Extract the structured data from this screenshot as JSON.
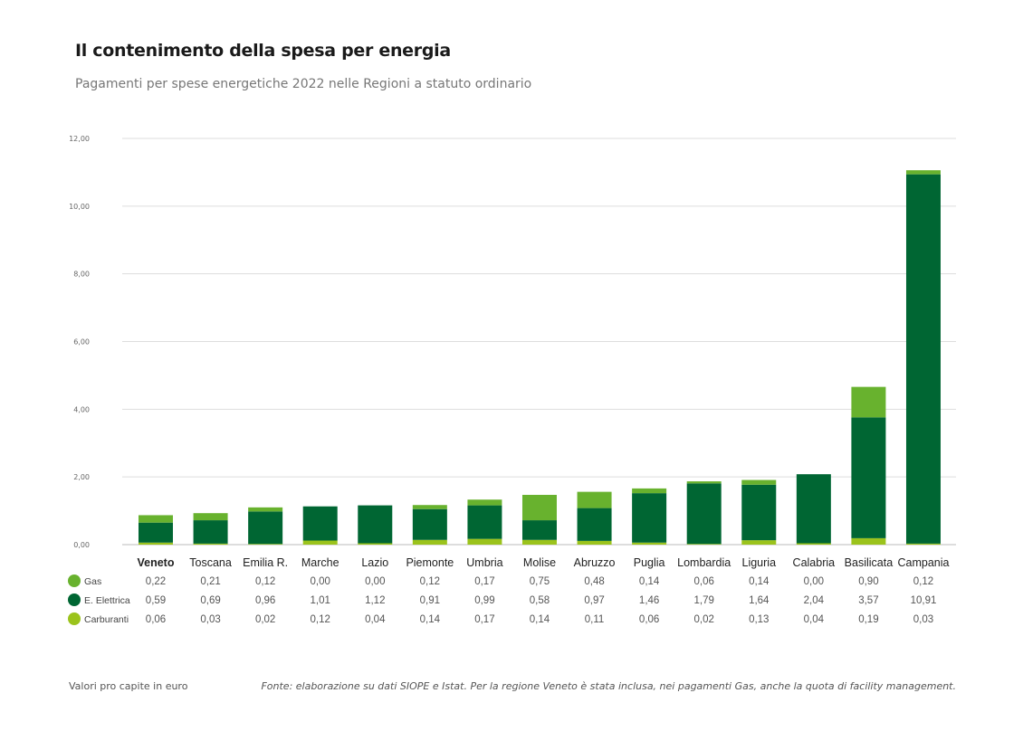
{
  "chart_data": {
    "type": "bar",
    "stacked": true,
    "title": "Il contenimento della spesa per energia",
    "subtitle": "Pagamenti per spese energetiche 2022 nelle Regioni a statuto ordinario",
    "categories": [
      "Veneto",
      "Toscana",
      "Emilia R.",
      "Marche",
      "Lazio",
      "Piemonte",
      "Umbria",
      "Molise",
      "Abruzzo",
      "Puglia",
      "Lombardia",
      "Liguria",
      "Calabria",
      "Basilicata",
      "Campania"
    ],
    "highlighted_category": "Veneto",
    "series": [
      {
        "name": "Gas",
        "color": "#68b22e",
        "values": [
          0.22,
          0.21,
          0.12,
          0.0,
          0.0,
          0.12,
          0.17,
          0.75,
          0.48,
          0.14,
          0.06,
          0.14,
          0.0,
          0.9,
          0.12
        ],
        "labels": [
          "0,22",
          "0,21",
          "0,12",
          "0,00",
          "0,00",
          "0,12",
          "0,17",
          "0,75",
          "0,48",
          "0,14",
          "0,06",
          "0,14",
          "0,00",
          "0,90",
          "0,12"
        ]
      },
      {
        "name": "E. Elettrica",
        "color": "#006633",
        "values": [
          0.59,
          0.69,
          0.96,
          1.01,
          1.12,
          0.91,
          0.99,
          0.58,
          0.97,
          1.46,
          1.79,
          1.64,
          2.04,
          3.57,
          10.91
        ],
        "labels": [
          "0,59",
          "0,69",
          "0,96",
          "1,01",
          "1,12",
          "0,91",
          "0,99",
          "0,58",
          "0,97",
          "1,46",
          "1,79",
          "1,64",
          "2,04",
          "3,57",
          "10,91"
        ]
      },
      {
        "name": "Carburanti",
        "color": "#9bc31c",
        "values": [
          0.06,
          0.03,
          0.02,
          0.12,
          0.04,
          0.14,
          0.17,
          0.14,
          0.11,
          0.06,
          0.02,
          0.13,
          0.04,
          0.19,
          0.03
        ],
        "labels": [
          "0,06",
          "0,03",
          "0,02",
          "0,12",
          "0,04",
          "0,14",
          "0,17",
          "0,14",
          "0,11",
          "0,06",
          "0,02",
          "0,13",
          "0,04",
          "0,19",
          "0,03"
        ]
      }
    ],
    "stack_order_bottom_to_top": [
      "Carburanti",
      "E. Elettrica",
      "Gas"
    ],
    "ylim": [
      0,
      12
    ],
    "yticks": [
      "0,00",
      "2,00",
      "4,00",
      "6,00",
      "8,00",
      "10,00",
      "12,00"
    ],
    "grid": true,
    "legend": "table-below",
    "note_left": "Valori pro capite in euro",
    "source": "Fonte: elaborazione su dati SIOPE e Istat. Per la regione Veneto è stata inclusa, nei pagamenti Gas, anche la quota di facility management."
  }
}
